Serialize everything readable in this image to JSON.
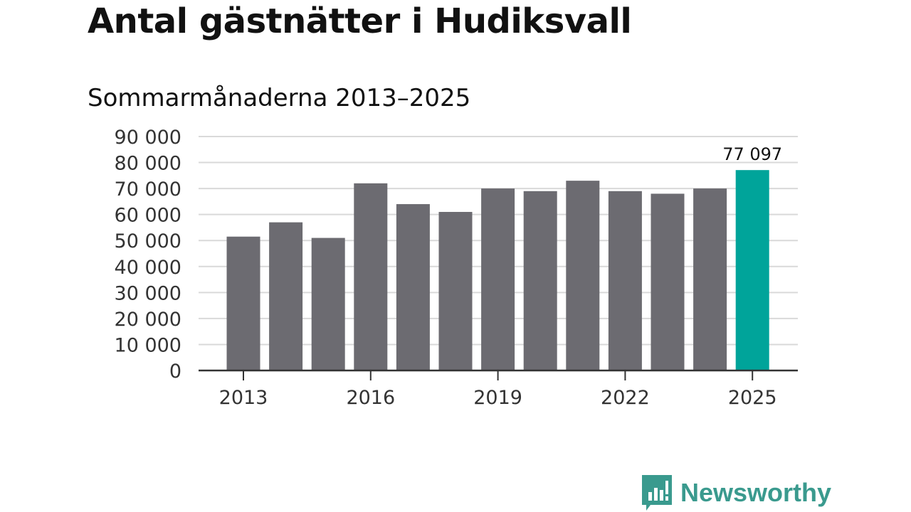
{
  "title": "Antal gästnätter i Hudiksvall",
  "subtitle": "Sommarmånaderna 2013–2025",
  "chart_data": {
    "type": "bar",
    "categories": [
      "2013",
      "2014",
      "2015",
      "2016",
      "2017",
      "2018",
      "2019",
      "2020",
      "2021",
      "2022",
      "2023",
      "2024",
      "2025"
    ],
    "values": [
      51500,
      57000,
      51000,
      72000,
      64000,
      61000,
      70000,
      69000,
      73000,
      69000,
      68000,
      70000,
      77097
    ],
    "xlabel": "",
    "ylabel": "",
    "ylim": [
      0,
      90000
    ],
    "yticks": [
      0,
      10000,
      20000,
      30000,
      40000,
      50000,
      60000,
      70000,
      80000,
      90000
    ],
    "ytick_labels": [
      "0",
      "10 000",
      "20 000",
      "30 000",
      "40 000",
      "50 000",
      "60 000",
      "70 000",
      "80 000",
      "90 000"
    ],
    "xtick_labels": [
      "2013",
      "2016",
      "2019",
      "2022",
      "2025"
    ],
    "data_labels": [
      {
        "category": "2025",
        "text": "77 097"
      }
    ],
    "grid": true,
    "highlight_category": "2025",
    "colors": {
      "bar": "#6c6b71",
      "highlight": "#00a49a",
      "grid": "#d9d9d9",
      "axis": "#333333"
    }
  },
  "brand": {
    "name": "Newsworthy",
    "icon": "bar-chart-speech-bubble-icon",
    "color": "#3a9a8e"
  }
}
